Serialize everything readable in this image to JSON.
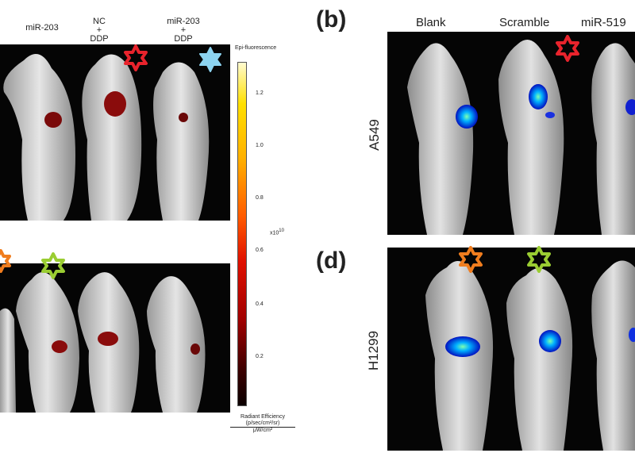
{
  "panel_a": {
    "headers": [
      {
        "text": "miR-203",
        "sub": ""
      },
      {
        "text": "NC",
        "sub": "+\nDDP"
      },
      {
        "text": "miR-203",
        "sub": "+\nDDP"
      }
    ],
    "scale_title": "Epi-fluorescence",
    "scale_ticks": [
      "1.2",
      "1.0",
      "0.8",
      "0.6",
      "0.4",
      "0.2"
    ],
    "scale_exponent": "x10",
    "scale_exponent_power": "10",
    "caption_line1": "Radiant Efficiency",
    "caption_line2": "(p/sec/cm²/sr)",
    "caption_line3": "μW/cm²",
    "star_colors": [
      "#e8232c",
      "#8cd3f0",
      "#f07d1e",
      "#9acd32"
    ]
  },
  "panel_b": {
    "letter": "(b)",
    "columns": [
      "Blank",
      "Scramble",
      "miR-519"
    ],
    "row_label": "A549",
    "star_color": "#e8232c"
  },
  "panel_d": {
    "letter": "(d)",
    "row_label": "H1299",
    "star_colors": [
      "#f07d1e",
      "#9acd32"
    ]
  }
}
